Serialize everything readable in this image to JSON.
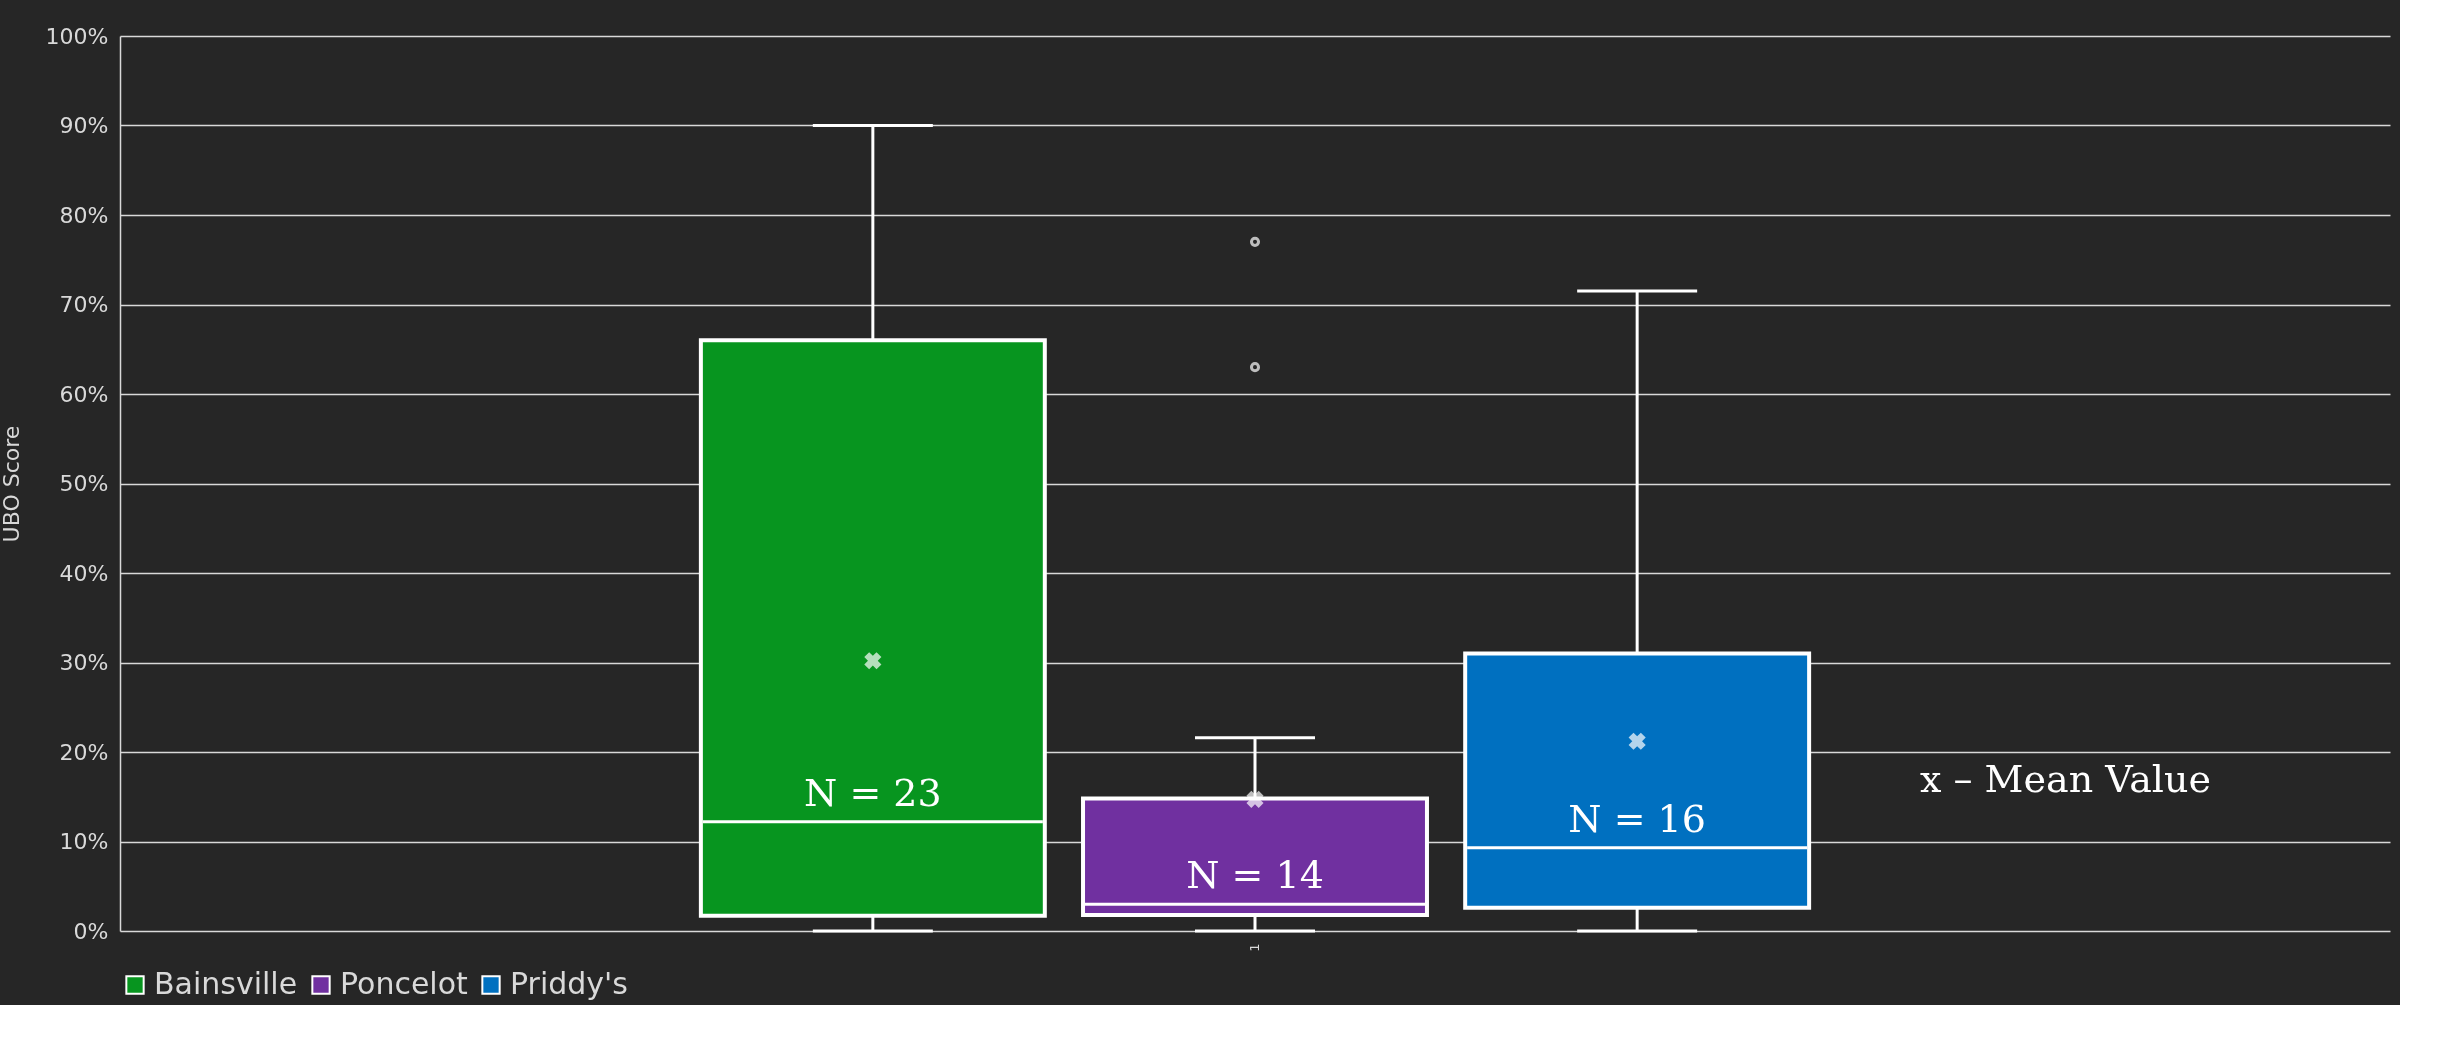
{
  "chart_data": {
    "type": "box",
    "ylabel": "UBO Score",
    "categories": [
      "1"
    ],
    "series": [
      {
        "name": "Bainsville",
        "color": "#07951f",
        "boxes": [
          {
            "low": 0,
            "q1": 1.7,
            "median": 12.2,
            "q3": 66,
            "high": 90,
            "mean": 30.2
          }
        ]
      },
      {
        "name": "Poncelot",
        "color": "#7030a0",
        "boxes": [
          {
            "low": 0,
            "q1": 1.8,
            "median": 3,
            "q3": 14.8,
            "high": 21.6,
            "mean": 14.7,
            "outliers": [
              63,
              77
            ]
          }
        ]
      },
      {
        "name": "Priddy's",
        "color": "#0070c0",
        "boxes": [
          {
            "low": 0,
            "q1": 2.6,
            "median": 9.3,
            "q3": 31,
            "high": 71.5,
            "mean": 21.2
          }
        ]
      }
    ],
    "ylim": [
      0,
      100
    ],
    "yticks": [
      {
        "value": 0,
        "label": "0%"
      },
      {
        "value": 10,
        "label": "10%"
      },
      {
        "value": 20,
        "label": "20%"
      },
      {
        "value": 30,
        "label": "30%"
      },
      {
        "value": 40,
        "label": "40%"
      },
      {
        "value": 50,
        "label": "50%"
      },
      {
        "value": 60,
        "label": "60%"
      },
      {
        "value": 70,
        "label": "70%"
      },
      {
        "value": 80,
        "label": "80%"
      },
      {
        "value": 90,
        "label": "90%"
      },
      {
        "value": 100,
        "label": "100%"
      }
    ],
    "grid": "y",
    "legend": "bottom",
    "marker": "cross",
    "annotations": [
      "N = 23",
      "N = 14",
      "N = 16",
      "x – Mean Value"
    ]
  }
}
